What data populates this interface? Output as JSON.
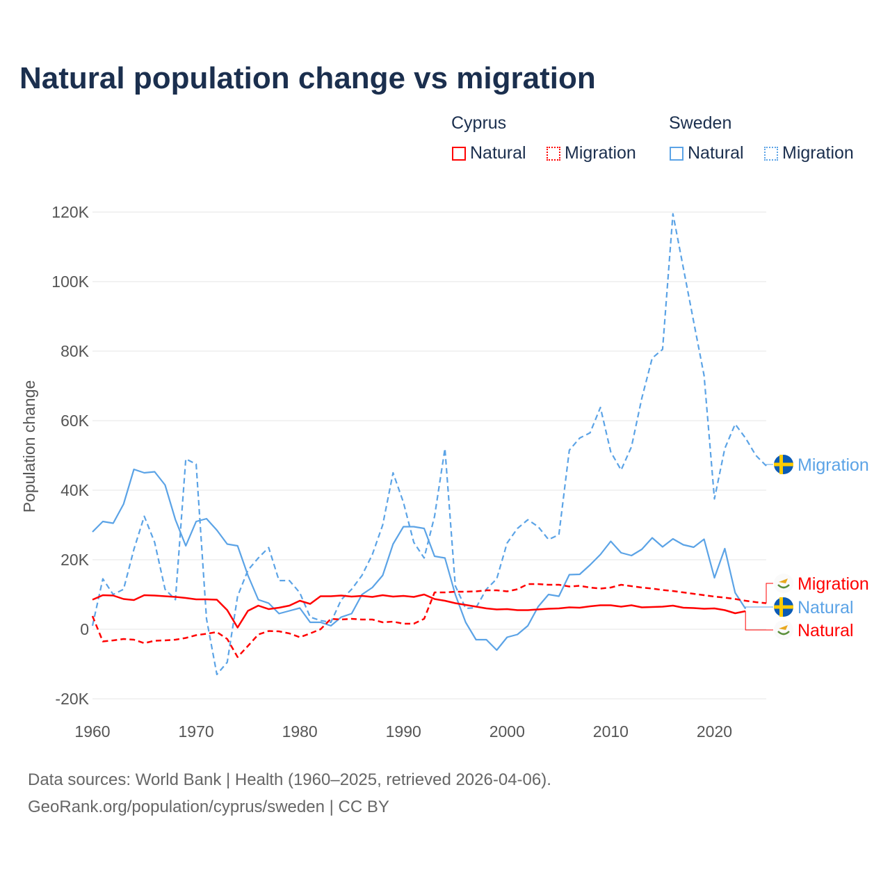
{
  "title": "Natural population change vs migration",
  "legend": {
    "groups": [
      {
        "name": "Cyprus",
        "items": [
          {
            "label": "Natural",
            "style": "solid"
          },
          {
            "label": "Migration",
            "style": "dotted"
          }
        ],
        "color": "#ff0000"
      },
      {
        "name": "Sweden",
        "items": [
          {
            "label": "Natural",
            "style": "solid"
          },
          {
            "label": "Migration",
            "style": "dotted"
          }
        ],
        "color": "#5ba3e6"
      }
    ]
  },
  "source": {
    "line1": "Data sources: World Bank | Health (1960–2025, retrieved 2026-04-06).",
    "line2": "GeoRank.org/population/cyprus/sweden | CC BY"
  },
  "chart_data": {
    "type": "line",
    "title": "Natural population change vs migration",
    "xlabel": "",
    "ylabel": "Population change",
    "xlim": [
      1960,
      2025
    ],
    "ylim": [
      -20000,
      120000
    ],
    "xticks": [
      1960,
      1970,
      1980,
      1990,
      2000,
      2010,
      2020
    ],
    "xtick_labels": [
      "1960",
      "1970",
      "1980",
      "1990",
      "2000",
      "2010",
      "2020"
    ],
    "yticks": [
      -20000,
      0,
      20000,
      40000,
      60000,
      80000,
      100000,
      120000
    ],
    "ytick_labels": [
      "-20K",
      "0",
      "20K",
      "40K",
      "60K",
      "80K",
      "100K",
      "120K"
    ],
    "grid": true,
    "start_year": 1960,
    "series": [
      {
        "name": "Sweden Migration",
        "country": "Sweden",
        "kind": "Migration",
        "color": "#5ba3e6",
        "dash": true,
        "end_label": "Migration",
        "flag": "sweden",
        "values": [
          1000,
          14500,
          10000,
          11500,
          23000,
          32500,
          25000,
          11500,
          8500,
          49000,
          47500,
          3000,
          -13000,
          -9500,
          9500,
          17000,
          20500,
          23500,
          14000,
          14000,
          10500,
          3500,
          2500,
          2000,
          8500,
          11500,
          15500,
          21500,
          30000,
          45000,
          36500,
          25000,
          20500,
          32500,
          52000,
          12500,
          6000,
          6200,
          11500,
          14500,
          24800,
          29000,
          31500,
          29500,
          25800,
          27200,
          51500,
          55000,
          56500,
          63800,
          51000,
          45800,
          52500,
          66500,
          78000,
          80500,
          119500,
          104000,
          88500,
          73000,
          37500,
          52000,
          59000,
          55000,
          50000,
          47000
        ]
      },
      {
        "name": "Sweden Natural",
        "country": "Sweden",
        "kind": "Natural",
        "color": "#5ba3e6",
        "dash": false,
        "end_label": "Natural",
        "flag": "sweden",
        "values": [
          28000,
          31000,
          30500,
          36000,
          46000,
          45000,
          45300,
          41500,
          31500,
          24000,
          31000,
          31800,
          28500,
          24500,
          24000,
          15500,
          8500,
          7500,
          4500,
          5300,
          6100,
          2000,
          2000,
          1000,
          3500,
          4500,
          10000,
          12000,
          15500,
          24500,
          29500,
          29500,
          29000,
          21000,
          20500,
          10000,
          2000,
          -3000,
          -3000,
          -6000,
          -2300,
          -1500,
          1000,
          6500,
          10000,
          9500,
          15700,
          15800,
          18500,
          21500,
          25300,
          22000,
          21200,
          23000,
          26300,
          23700,
          26000,
          24300,
          23600,
          25900,
          14800,
          23200,
          10500,
          5900
        ]
      },
      {
        "name": "Cyprus Migration",
        "country": "Cyprus",
        "kind": "Migration",
        "color": "#ff0000",
        "dash": true,
        "end_label": "Migration",
        "flag": "cyprus",
        "values": [
          3800,
          -3500,
          -3200,
          -2800,
          -3000,
          -4000,
          -3300,
          -3200,
          -3000,
          -2500,
          -1700,
          -1300,
          -800,
          -2800,
          -8000,
          -4800,
          -1500,
          -500,
          -600,
          -1200,
          -2300,
          -1200,
          0,
          3000,
          2800,
          3000,
          2800,
          2800,
          2000,
          2200,
          1600,
          1600,
          3000,
          10600,
          10600,
          10800,
          10800,
          10900,
          11200,
          11200,
          10900,
          11500,
          13000,
          13000,
          12800,
          12800,
          12300,
          12500,
          12000,
          11700,
          12000,
          12800,
          12400,
          12000,
          11700,
          11300,
          11000,
          10600,
          10200,
          9800,
          9400,
          9100,
          8700,
          8200,
          7800,
          7500
        ]
      },
      {
        "name": "Cyprus Natural",
        "country": "Cyprus",
        "kind": "Natural",
        "color": "#ff0000",
        "dash": false,
        "end_label": "Natural",
        "flag": "cyprus",
        "values": [
          8500,
          9800,
          9700,
          8700,
          8400,
          9800,
          9700,
          9500,
          9300,
          9000,
          8600,
          8600,
          8500,
          5500,
          500,
          5300,
          6800,
          5800,
          6200,
          6800,
          8200,
          7300,
          9500,
          9500,
          9700,
          9400,
          9600,
          9300,
          9800,
          9400,
          9600,
          9300,
          10000,
          8700,
          8200,
          7500,
          7000,
          6500,
          6000,
          5700,
          5800,
          5500,
          5500,
          5700,
          5900,
          6000,
          6300,
          6200,
          6600,
          6900,
          6900,
          6500,
          6900,
          6300,
          6400,
          6500,
          6800,
          6200,
          6100,
          5900,
          6000,
          5500,
          4600,
          5200
        ]
      }
    ]
  }
}
